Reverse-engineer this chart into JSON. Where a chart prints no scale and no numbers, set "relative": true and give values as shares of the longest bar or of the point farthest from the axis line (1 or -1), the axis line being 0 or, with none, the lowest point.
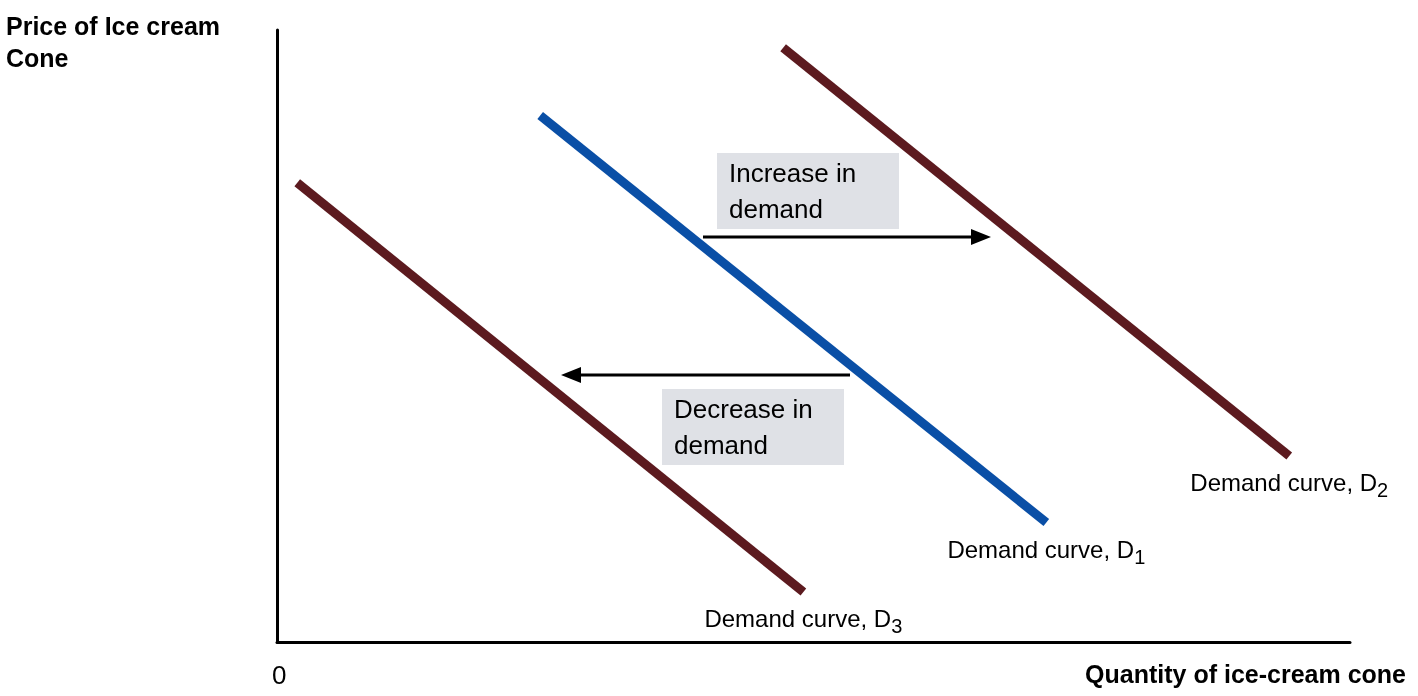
{
  "chart_data": {
    "type": "line",
    "relative": true,
    "marker": "none",
    "xlabel": "Quantity of ice-cream cone",
    "ylabel": "Price of Ice cream Cone",
    "categories": [
      null,
      null,
      null,
      null,
      null,
      null,
      null,
      null,
      null,
      null,
      null,
      null,
      null,
      null,
      null,
      null,
      null,
      null,
      null,
      null,
      null,
      null,
      null,
      null,
      null,
      null,
      null,
      null,
      null,
      null,
      null,
      null,
      null,
      null,
      null,
      null,
      null,
      null,
      null,
      null,
      null,
      null,
      null,
      null,
      null,
      null,
      null,
      null,
      null,
      null,
      null,
      null,
      null,
      null
    ],
    "series": [
      {
        "name": "Demand curve, D$_{3}$",
        "color": "#5c1a1f",
        "values": [
          null,
          0.773,
          null,
          null,
          null,
          null,
          null,
          null,
          null,
          null,
          null,
          null,
          null,
          null,
          null,
          null,
          null,
          null,
          null,
          null,
          null,
          null,
          null,
          null,
          null,
          null,
          0.084,
          null,
          null,
          null,
          null,
          null,
          null,
          null,
          null,
          null,
          null,
          null,
          null,
          null,
          null,
          null,
          null,
          null,
          null,
          null,
          null,
          null,
          null,
          null,
          null,
          null,
          null,
          null
        ]
      },
      {
        "name": "Demand curve, D$_{1}$",
        "color": "#0a4fa6",
        "values": [
          null,
          null,
          null,
          null,
          null,
          null,
          null,
          null,
          null,
          null,
          null,
          null,
          null,
          0.886,
          null,
          null,
          null,
          null,
          null,
          null,
          null,
          null,
          null,
          null,
          null,
          null,
          null,
          null,
          null,
          null,
          null,
          null,
          null,
          null,
          null,
          null,
          null,
          null,
          0.201,
          null,
          null,
          null,
          null,
          null,
          null,
          null,
          null,
          null,
          null,
          null,
          null,
          null,
          null,
          null
        ]
      },
      {
        "name": "Demand curve, D$_{2}$",
        "color": "#5c1a1f",
        "values": [
          null,
          null,
          null,
          null,
          null,
          null,
          null,
          null,
          null,
          null,
          null,
          null,
          null,
          null,
          null,
          null,
          null,
          null,
          null,
          null,
          null,
          null,
          null,
          null,
          null,
          1,
          null,
          null,
          null,
          null,
          null,
          null,
          null,
          null,
          null,
          null,
          null,
          null,
          null,
          null,
          null,
          null,
          null,
          null,
          null,
          null,
          null,
          null,
          null,
          null,
          0.313,
          null,
          null,
          null
        ]
      }
    ],
    "annotations": [
      "Increase in demand",
      "Decrease in demand",
      "0"
    ]
  }
}
